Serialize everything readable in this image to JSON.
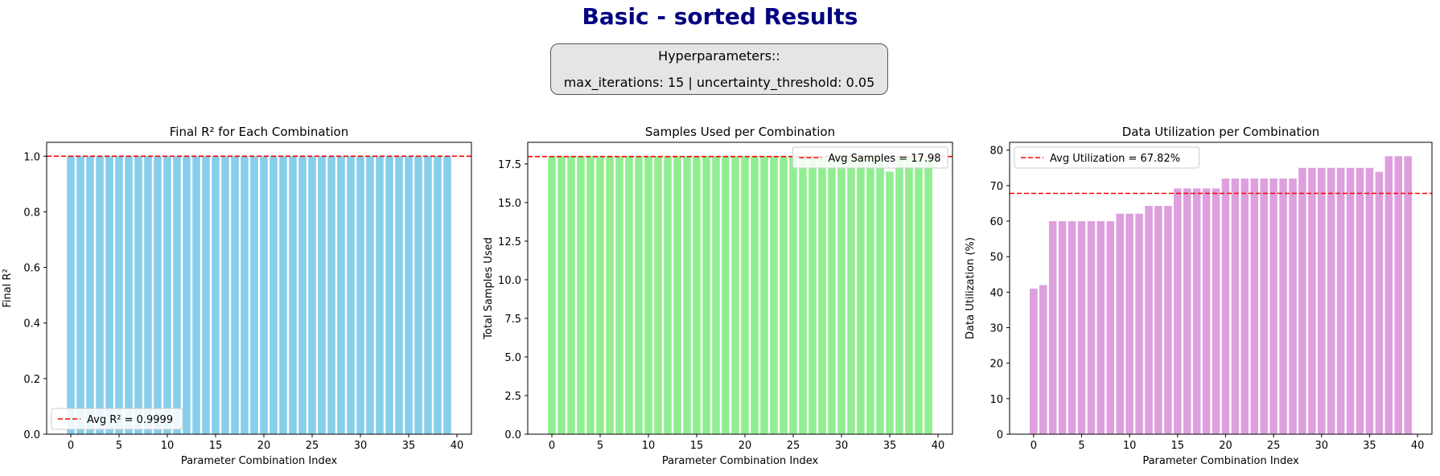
{
  "figure": {
    "title": "Basic - sorted Results",
    "hyper_title": "Hyperparameters::",
    "hyper_text": "max_iterations: 15 | uncertainty_threshold: 0.05"
  },
  "chart_data": [
    {
      "type": "bar",
      "title": "Final R² for Each Combination",
      "xlabel": "Parameter Combination Index",
      "ylabel": "Final R²",
      "x": [
        0,
        1,
        2,
        3,
        4,
        5,
        6,
        7,
        8,
        9,
        10,
        11,
        12,
        13,
        14,
        15,
        16,
        17,
        18,
        19,
        20,
        21,
        22,
        23,
        24,
        25,
        26,
        27,
        28,
        29,
        30,
        31,
        32,
        33,
        34,
        35,
        36,
        37,
        38,
        39
      ],
      "values": [
        1.0,
        1.0,
        1.0,
        1.0,
        1.0,
        1.0,
        1.0,
        1.0,
        1.0,
        1.0,
        1.0,
        1.0,
        1.0,
        1.0,
        1.0,
        1.0,
        1.0,
        1.0,
        1.0,
        1.0,
        1.0,
        1.0,
        1.0,
        1.0,
        1.0,
        1.0,
        1.0,
        1.0,
        1.0,
        1.0,
        1.0,
        1.0,
        1.0,
        1.0,
        1.0,
        1.0,
        1.0,
        1.0,
        1.0,
        1.0
      ],
      "xlim": [
        -2.5,
        41.5
      ],
      "ylim": [
        0,
        1.05
      ],
      "xticks": [
        0,
        5,
        10,
        15,
        20,
        25,
        30,
        35,
        40
      ],
      "yticks": [
        0.0,
        0.2,
        0.4,
        0.6,
        0.8,
        1.0
      ],
      "ytick_labels": [
        "0.0",
        "0.2",
        "0.4",
        "0.6",
        "0.8",
        "1.0"
      ],
      "bar_color": "#87ceeb",
      "avg_line": {
        "value": 0.9999,
        "label": "Avg R² = 0.9999",
        "color": "#ff0000"
      },
      "legend_position": "lower-left",
      "grid": false
    },
    {
      "type": "bar",
      "title": "Samples Used per Combination",
      "xlabel": "Parameter Combination Index",
      "ylabel": "Total Samples Used",
      "x": [
        0,
        1,
        2,
        3,
        4,
        5,
        6,
        7,
        8,
        9,
        10,
        11,
        12,
        13,
        14,
        15,
        16,
        17,
        18,
        19,
        20,
        21,
        22,
        23,
        24,
        25,
        26,
        27,
        28,
        29,
        30,
        31,
        32,
        33,
        34,
        35,
        36,
        37,
        38,
        39
      ],
      "values": [
        18,
        18,
        18,
        18,
        18,
        18,
        18,
        18,
        18,
        18,
        18,
        18,
        18,
        18,
        18,
        18,
        18,
        18,
        18,
        18,
        18,
        18,
        18,
        18,
        18,
        18,
        18,
        18,
        18,
        18,
        18,
        18,
        18,
        18,
        18,
        17,
        18,
        18,
        18,
        18
      ],
      "xlim": [
        -2.5,
        41.5
      ],
      "ylim": [
        0,
        18.9
      ],
      "xticks": [
        0,
        5,
        10,
        15,
        20,
        25,
        30,
        35,
        40
      ],
      "yticks": [
        0.0,
        2.5,
        5.0,
        7.5,
        10.0,
        12.5,
        15.0,
        17.5
      ],
      "ytick_labels": [
        "0.0",
        "2.5",
        "5.0",
        "7.5",
        "10.0",
        "12.5",
        "15.0",
        "17.5"
      ],
      "bar_color": "#90ee90",
      "avg_line": {
        "value": 17.98,
        "label": "Avg Samples = 17.98",
        "color": "#ff0000"
      },
      "legend_position": "upper-right",
      "grid": false
    },
    {
      "type": "bar",
      "title": "Data Utilization per Combination",
      "xlabel": "Parameter Combination Index",
      "ylabel": "Data Utilization (%)",
      "x": [
        0,
        1,
        2,
        3,
        4,
        5,
        6,
        7,
        8,
        9,
        10,
        11,
        12,
        13,
        14,
        15,
        16,
        17,
        18,
        19,
        20,
        21,
        22,
        23,
        24,
        25,
        26,
        27,
        28,
        29,
        30,
        31,
        32,
        33,
        34,
        35,
        36,
        37,
        38,
        39
      ],
      "values": [
        41.0,
        42.0,
        60.0,
        60.0,
        60.0,
        60.0,
        60.0,
        60.0,
        60.0,
        62.1,
        62.1,
        62.1,
        64.3,
        64.3,
        64.3,
        69.2,
        69.2,
        69.2,
        69.2,
        69.2,
        72.0,
        72.0,
        72.0,
        72.0,
        72.0,
        72.0,
        72.0,
        72.0,
        75.0,
        75.0,
        75.0,
        75.0,
        75.0,
        75.0,
        75.0,
        75.0,
        73.9,
        78.3,
        78.3,
        78.3
      ],
      "xlim": [
        -2.5,
        41.5
      ],
      "ylim": [
        0,
        82.2
      ],
      "xticks": [
        0,
        5,
        10,
        15,
        20,
        25,
        30,
        35,
        40
      ],
      "yticks": [
        0,
        10,
        20,
        30,
        40,
        50,
        60,
        70,
        80
      ],
      "ytick_labels": [
        "0",
        "10",
        "20",
        "30",
        "40",
        "50",
        "60",
        "70",
        "80"
      ],
      "bar_color": "#dda0dd",
      "avg_line": {
        "value": 67.82,
        "label": "Avg Utilization = 67.82%",
        "color": "#ff0000"
      },
      "legend_position": "upper-left",
      "grid": false
    }
  ]
}
